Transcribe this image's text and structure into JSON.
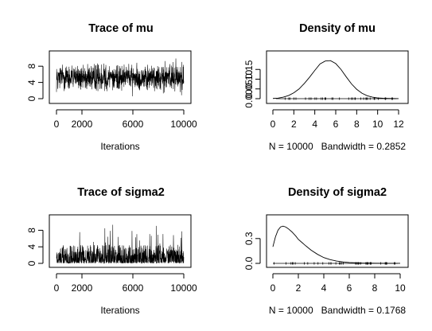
{
  "chart_data": [
    {
      "id": "trace_mu",
      "type": "line",
      "title": "Trace of mu",
      "xlabel": "Iterations",
      "ylabel": "",
      "xlim": [
        0,
        10000
      ],
      "ylim": [
        0,
        10
      ],
      "xticks": [
        0,
        2000,
        6000,
        10000
      ],
      "yticks": [
        0,
        4,
        8
      ],
      "series": [
        {
          "center": 5.0,
          "band_min": 1.5,
          "band_max": 9.0,
          "spike_min": 0.4,
          "spike_max": 10.5
        }
      ]
    },
    {
      "id": "density_mu",
      "type": "line",
      "title": "Density of mu",
      "xlabel": "N = 10000   Bandwidth = 0.2852",
      "ylabel": "",
      "xlim": [
        0,
        12
      ],
      "ylim": [
        0,
        0.2
      ],
      "xticks": [
        0,
        2,
        4,
        6,
        8,
        10,
        12
      ],
      "yticks": [
        0.0,
        0.05,
        0.1,
        0.15
      ],
      "ytick_labels": [
        "0.00",
        "0.05",
        "0.10",
        "0.15"
      ],
      "series": [
        {
          "x": [
            0.0,
            0.5,
            1.0,
            1.5,
            2.0,
            2.5,
            3.0,
            3.5,
            4.0,
            4.5,
            5.0,
            5.5,
            6.0,
            6.5,
            7.0,
            7.5,
            8.0,
            8.5,
            9.0,
            9.5,
            10.0,
            10.5,
            11.0,
            11.5,
            12.0
          ],
          "y": [
            0.001,
            0.003,
            0.008,
            0.016,
            0.03,
            0.05,
            0.078,
            0.11,
            0.145,
            0.178,
            0.193,
            0.195,
            0.18,
            0.15,
            0.112,
            0.076,
            0.048,
            0.028,
            0.015,
            0.008,
            0.004,
            0.002,
            0.001,
            0.0005,
            0.0002
          ]
        }
      ],
      "rug": {
        "from": 0.3,
        "to": 11.8
      }
    },
    {
      "id": "trace_sigma2",
      "type": "line",
      "title": "Trace of sigma2",
      "xlabel": "Iterations",
      "ylabel": "",
      "xlim": [
        0,
        10000
      ],
      "ylim": [
        0,
        10
      ],
      "xticks": [
        0,
        2000,
        6000,
        10000
      ],
      "yticks": [
        0,
        4,
        8
      ],
      "series": [
        {
          "base_min": 0.05,
          "band_max": 4.5,
          "spike_max": 9.8
        }
      ]
    },
    {
      "id": "density_sigma2",
      "type": "line",
      "title": "Density of sigma2",
      "xlabel": "N = 10000   Bandwidth = 0.1768",
      "ylabel": "",
      "xlim": [
        0,
        10
      ],
      "ylim": [
        0,
        0.5
      ],
      "xticks": [
        0,
        2,
        4,
        6,
        8,
        10
      ],
      "yticks": [
        0.0,
        0.3
      ],
      "ytick_labels": [
        "0.0",
        "0.3"
      ],
      "series": [
        {
          "x": [
            0.0,
            0.2,
            0.4,
            0.6,
            0.8,
            1.0,
            1.2,
            1.5,
            1.8,
            2.0,
            2.3,
            2.6,
            3.0,
            3.5,
            4.0,
            4.5,
            5.0,
            5.5,
            6.0,
            7.0,
            8.0,
            9.0,
            10.0
          ],
          "y": [
            0.2,
            0.32,
            0.4,
            0.44,
            0.45,
            0.44,
            0.42,
            0.38,
            0.33,
            0.29,
            0.25,
            0.21,
            0.16,
            0.11,
            0.07,
            0.045,
            0.028,
            0.017,
            0.01,
            0.004,
            0.0015,
            0.0006,
            0.0002
          ]
        }
      ],
      "rug": {
        "from": 0.0,
        "to": 9.8
      }
    }
  ]
}
